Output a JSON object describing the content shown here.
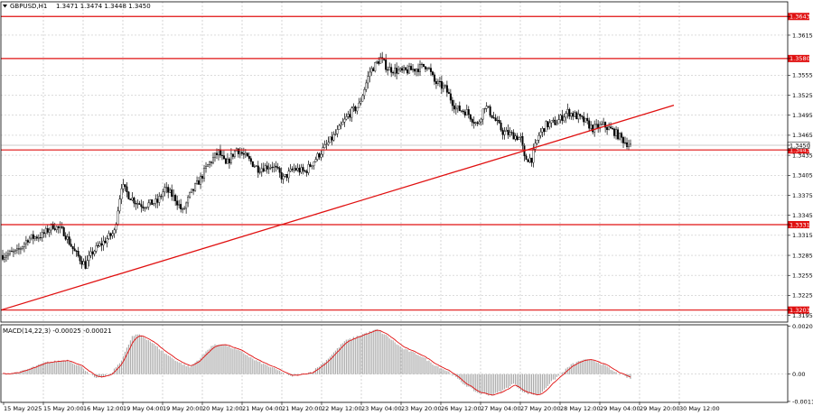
{
  "chart_data": [
    {
      "type": "candlestick",
      "header": {
        "symbol": "GBPUSD,H1",
        "ohlc": "1.3471 1.3474 1.3448 1.3450"
      },
      "ylim": [
        1.3185,
        1.3665
      ],
      "grid": true,
      "y_ticks": [
        "1.3643",
        "1.3615",
        "1.3580",
        "1.3555",
        "1.3525",
        "1.3495",
        "1.3465",
        "1.3450",
        "1.3443",
        "1.3435",
        "1.3405",
        "1.3375",
        "1.3345",
        "1.3331",
        "1.3315",
        "1.3285",
        "1.3255",
        "1.3225",
        "1.3203",
        "1.3195"
      ],
      "x_labels": [
        "15 May 2025",
        "15 May 20:00",
        "16 May 12:00",
        "19 May 04:00",
        "19 May 20:00",
        "20 May 12:00",
        "21 May 04:00",
        "21 May 20:00",
        "22 May 12:00",
        "23 May 04:00",
        "23 May 20:00",
        "26 May 12:00",
        "27 May 04:00",
        "27 May 20:00",
        "28 May 12:00",
        "29 May 04:00",
        "29 May 20:00",
        "30 May 12:00"
      ],
      "levels": [
        {
          "value": 1.3643,
          "label": "1.3643"
        },
        {
          "value": 1.358,
          "label": "1.3580"
        },
        {
          "value": 1.3443,
          "label": "1.3443"
        },
        {
          "value": 1.3331,
          "label": "1.3331"
        },
        {
          "value": 1.3203,
          "label": "1.3203"
        }
      ],
      "current_price": {
        "value": 1.345,
        "label": "1.3450"
      },
      "trendline": {
        "from": [
          "15 May 2025",
          1.3203
        ],
        "to": [
          "30 May 12:00",
          1.351
        ]
      },
      "anchors": [
        [
          0,
          1.3285
        ],
        [
          8,
          1.329
        ],
        [
          14,
          1.331
        ],
        [
          22,
          1.3315
        ],
        [
          28,
          1.333
        ],
        [
          34,
          1.332
        ],
        [
          40,
          1.329
        ],
        [
          46,
          1.327
        ],
        [
          50,
          1.329
        ],
        [
          56,
          1.3305
        ],
        [
          62,
          1.332
        ],
        [
          66,
          1.339
        ],
        [
          70,
          1.3375
        ],
        [
          74,
          1.3365
        ],
        [
          78,
          1.336
        ],
        [
          86,
          1.3365
        ],
        [
          90,
          1.3385
        ],
        [
          96,
          1.337
        ],
        [
          100,
          1.335
        ],
        [
          104,
          1.3375
        ],
        [
          110,
          1.34
        ],
        [
          114,
          1.342
        ],
        [
          120,
          1.344
        ],
        [
          124,
          1.342
        ],
        [
          130,
          1.3445
        ],
        [
          136,
          1.343
        ],
        [
          142,
          1.3415
        ],
        [
          150,
          1.342
        ],
        [
          156,
          1.34
        ],
        [
          162,
          1.3415
        ],
        [
          168,
          1.341
        ],
        [
          174,
          1.343
        ],
        [
          180,
          1.345
        ],
        [
          186,
          1.347
        ],
        [
          192,
          1.3495
        ],
        [
          198,
          1.351
        ],
        [
          204,
          1.356
        ],
        [
          210,
          1.358
        ],
        [
          214,
          1.3565
        ],
        [
          222,
          1.356
        ],
        [
          230,
          1.3565
        ],
        [
          236,
          1.357
        ],
        [
          240,
          1.3545
        ],
        [
          246,
          1.3535
        ],
        [
          252,
          1.3505
        ],
        [
          258,
          1.35
        ],
        [
          264,
          1.348
        ],
        [
          268,
          1.351
        ],
        [
          272,
          1.3495
        ],
        [
          278,
          1.347
        ],
        [
          284,
          1.3465
        ],
        [
          288,
          1.346
        ],
        [
          290,
          1.343
        ],
        [
          294,
          1.343
        ],
        [
          298,
          1.3465
        ],
        [
          302,
          1.348
        ],
        [
          308,
          1.3485
        ],
        [
          314,
          1.35
        ],
        [
          318,
          1.3495
        ],
        [
          324,
          1.3485
        ],
        [
          328,
          1.3475
        ],
        [
          334,
          1.348
        ],
        [
          340,
          1.347
        ],
        [
          346,
          1.3455
        ],
        [
          349,
          1.345
        ]
      ]
    },
    {
      "type": "histogram",
      "header": "MACD(14,22,3) -0.00025 -0.00021",
      "ylim": [
        -0.0012,
        0.0021
      ],
      "y_ticks": [
        {
          "value": 0.00204,
          "label": "0.00204"
        },
        {
          "value": 0.0,
          "label": "0.00"
        },
        {
          "value": -0.00116,
          "label": "-0.00116"
        }
      ],
      "anchors": [
        [
          0,
          0.0
        ],
        [
          10,
          0.0001
        ],
        [
          24,
          0.0005
        ],
        [
          36,
          0.0006
        ],
        [
          44,
          0.0003
        ],
        [
          52,
          -0.0002
        ],
        [
          60,
          0.0
        ],
        [
          66,
          0.0006
        ],
        [
          72,
          0.0016
        ],
        [
          76,
          0.0017
        ],
        [
          82,
          0.0014
        ],
        [
          90,
          0.0009
        ],
        [
          98,
          0.0005
        ],
        [
          104,
          0.0003
        ],
        [
          110,
          0.0007
        ],
        [
          116,
          0.0012
        ],
        [
          122,
          0.0013
        ],
        [
          128,
          0.0011
        ],
        [
          134,
          0.0009
        ],
        [
          140,
          0.0006
        ],
        [
          146,
          0.0004
        ],
        [
          152,
          0.0002
        ],
        [
          160,
          -0.0001
        ],
        [
          166,
          0.0
        ],
        [
          172,
          0.0001
        ],
        [
          180,
          0.0006
        ],
        [
          190,
          0.0014
        ],
        [
          200,
          0.0017
        ],
        [
          208,
          0.0019
        ],
        [
          214,
          0.0016
        ],
        [
          222,
          0.0011
        ],
        [
          232,
          0.0008
        ],
        [
          240,
          0.0004
        ],
        [
          248,
          0.0001
        ],
        [
          256,
          -0.0004
        ],
        [
          264,
          -0.0008
        ],
        [
          272,
          -0.0009
        ],
        [
          278,
          -0.0007
        ],
        [
          284,
          -0.0004
        ],
        [
          290,
          -0.0008
        ],
        [
          298,
          -0.0009
        ],
        [
          304,
          -0.0004
        ],
        [
          310,
          0.0
        ],
        [
          316,
          0.0004
        ],
        [
          322,
          0.0006
        ],
        [
          328,
          0.0006
        ],
        [
          334,
          0.0004
        ],
        [
          340,
          0.0001
        ],
        [
          346,
          -0.0001
        ],
        [
          349,
          -0.0002
        ]
      ]
    }
  ]
}
